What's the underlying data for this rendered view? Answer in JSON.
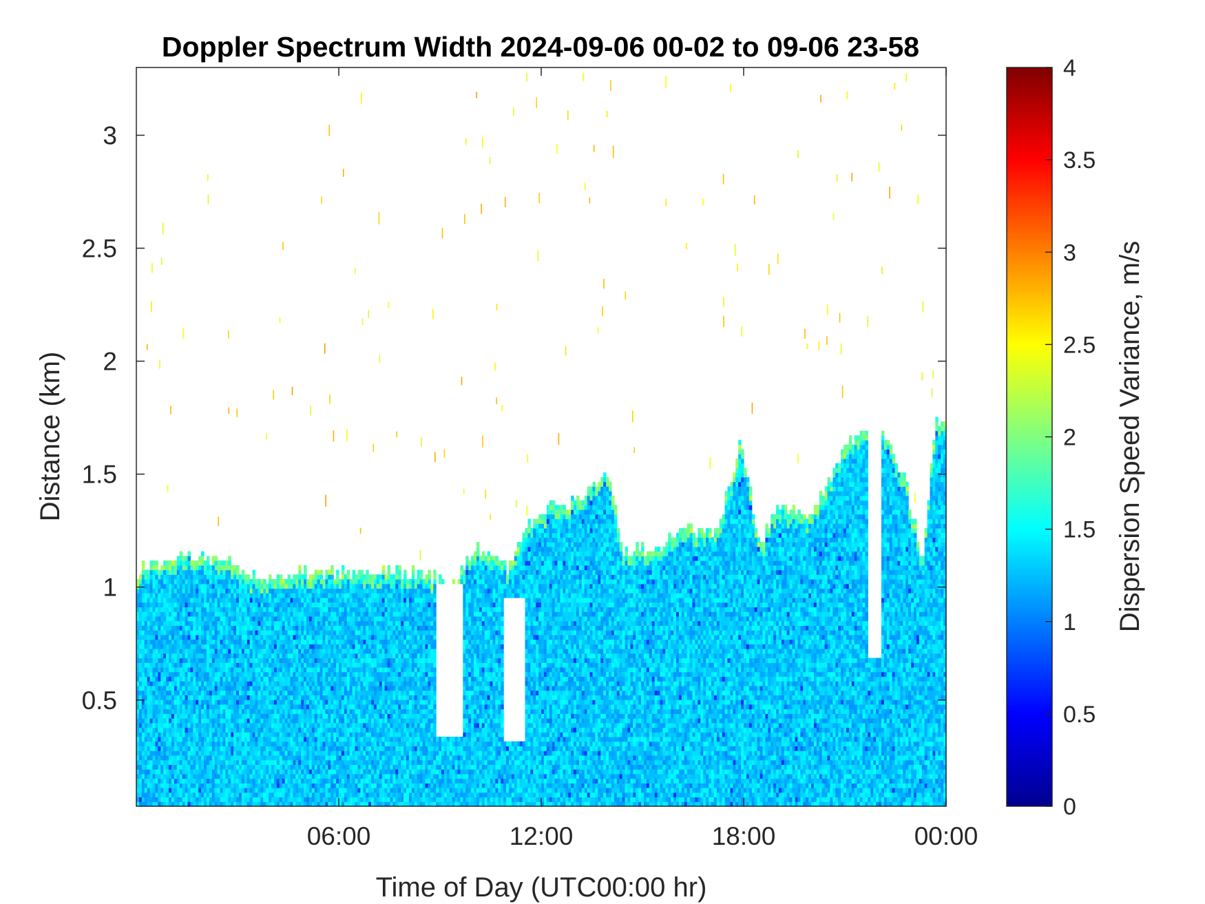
{
  "chart_data": {
    "type": "heatmap",
    "title": "Doppler Spectrum Width 2024-09-06 00-02 to 09-06 23-58",
    "xlabel": "Time of Day (UTC00:00 hr)",
    "ylabel": "Distance (km)",
    "xlim_hours": [
      0,
      24
    ],
    "ylim_km": [
      0.03,
      3.3
    ],
    "x_ticks": [
      {
        "hour": 6,
        "label": "06:00"
      },
      {
        "hour": 12,
        "label": "12:00"
      },
      {
        "hour": 18,
        "label": "18:00"
      },
      {
        "hour": 24,
        "label": "00:00"
      }
    ],
    "y_ticks": [
      {
        "km": 0.5,
        "label": "0.5"
      },
      {
        "km": 1.0,
        "label": "1"
      },
      {
        "km": 1.5,
        "label": "1.5"
      },
      {
        "km": 2.0,
        "label": "2"
      },
      {
        "km": 2.5,
        "label": "2.5"
      },
      {
        "km": 3.0,
        "label": "3"
      }
    ],
    "colorbar": {
      "label": "Dispersion Speed Variance, m/s",
      "colormap": "jet",
      "range": [
        0,
        4
      ],
      "ticks": [
        {
          "value": 0,
          "label": "0"
        },
        {
          "value": 0.5,
          "label": "0.5"
        },
        {
          "value": 1,
          "label": "1"
        },
        {
          "value": 1.5,
          "label": "1.5"
        },
        {
          "value": 2,
          "label": "2"
        },
        {
          "value": 2.5,
          "label": "2.5"
        },
        {
          "value": 3,
          "label": "3"
        },
        {
          "value": 3.5,
          "label": "3.5"
        },
        {
          "value": 4,
          "label": "4"
        }
      ]
    },
    "typical_value": 1.3,
    "cloud_top_km": [
      {
        "hour": 0.0,
        "top": 1.06
      },
      {
        "hour": 1.0,
        "top": 1.12
      },
      {
        "hour": 2.5,
        "top": 1.12
      },
      {
        "hour": 3.5,
        "top": 1.03
      },
      {
        "hour": 5.0,
        "top": 1.06
      },
      {
        "hour": 7.0,
        "top": 1.06
      },
      {
        "hour": 8.3,
        "top": 1.05
      },
      {
        "hour": 9.5,
        "top": 1.02
      },
      {
        "hour": 10.0,
        "top": 1.17
      },
      {
        "hour": 11.0,
        "top": 1.08
      },
      {
        "hour": 11.5,
        "top": 1.25
      },
      {
        "hour": 12.3,
        "top": 1.35
      },
      {
        "hour": 13.0,
        "top": 1.36
      },
      {
        "hour": 13.6,
        "top": 1.45
      },
      {
        "hour": 14.0,
        "top": 1.5
      },
      {
        "hour": 14.4,
        "top": 1.15
      },
      {
        "hour": 15.5,
        "top": 1.17
      },
      {
        "hour": 16.3,
        "top": 1.25
      },
      {
        "hour": 17.2,
        "top": 1.22
      },
      {
        "hour": 17.9,
        "top": 1.62
      },
      {
        "hour": 18.5,
        "top": 1.18
      },
      {
        "hour": 19.0,
        "top": 1.35
      },
      {
        "hour": 20.0,
        "top": 1.3
      },
      {
        "hour": 21.0,
        "top": 1.6
      },
      {
        "hour": 22.0,
        "top": 1.75
      },
      {
        "hour": 22.8,
        "top": 1.45
      },
      {
        "hour": 23.3,
        "top": 1.1
      },
      {
        "hour": 23.7,
        "top": 1.75
      },
      {
        "hour": 24.0,
        "top": 1.7
      }
    ],
    "clear_gaps": [
      {
        "hour_start": 8.85,
        "hour_end": 9.7,
        "km_min": 0.32,
        "km_max": 1.0
      },
      {
        "hour_start": 10.85,
        "hour_end": 11.55,
        "km_min": 0.31,
        "km_max": 0.95
      },
      {
        "hour_start": 21.7,
        "hour_end": 22.1,
        "km_min": 0.67,
        "km_max": 1.8
      }
    ]
  }
}
